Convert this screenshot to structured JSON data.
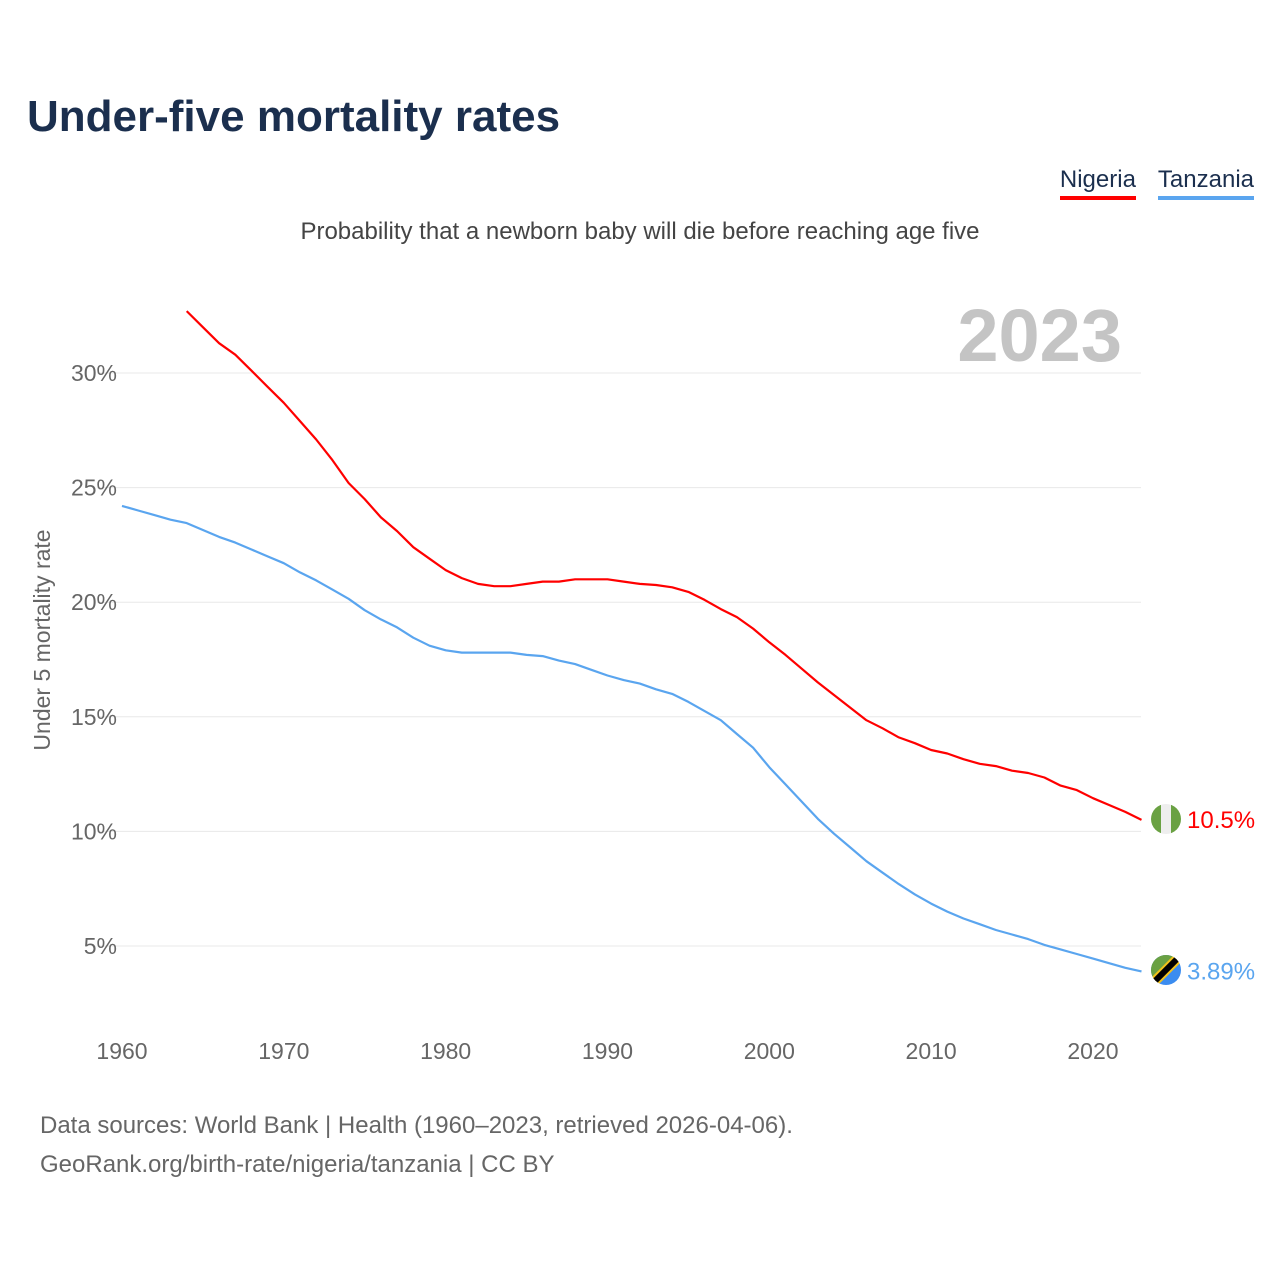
{
  "title": "Under-five mortality rates",
  "subtitle": "Probability that a newborn baby will die before reaching age five",
  "year_label": "2023",
  "source_line1": "Data sources: World Bank | Health (1960–2023, retrieved 2026-04-06).",
  "source_line2": "GeoRank.org/birth-rate/nigeria/tanzania | CC BY",
  "chart_data": {
    "type": "line",
    "title": "Under-five mortality rates",
    "subtitle": "Probability that a newborn baby will die before reaching age five",
    "xlabel": "",
    "ylabel": "Under 5 mortality rate",
    "xlim": [
      1960,
      2023
    ],
    "ylim": [
      0,
      33
    ],
    "grid": true,
    "legend": "top-right",
    "x_ticks": [
      1960,
      1970,
      1980,
      1990,
      2000,
      2010,
      2020
    ],
    "x_tick_labels": [
      "1960",
      "1970",
      "1980",
      "1990",
      "2000",
      "2010",
      "2020"
    ],
    "y_ticks": [
      5,
      10,
      15,
      20,
      25,
      30
    ],
    "y_tick_labels": [
      "5%",
      "10%",
      "15%",
      "20%",
      "25%",
      "30%"
    ],
    "series": [
      {
        "name": "Nigeria",
        "color": "#ff0000",
        "end_label": "10.5%",
        "flag": "nigeria-flag",
        "x": [
          1964,
          1965,
          1966,
          1967,
          1968,
          1969,
          1970,
          1971,
          1972,
          1973,
          1974,
          1975,
          1976,
          1977,
          1978,
          1979,
          1980,
          1981,
          1982,
          1983,
          1984,
          1985,
          1986,
          1987,
          1988,
          1989,
          1990,
          1991,
          1992,
          1993,
          1994,
          1995,
          1996,
          1997,
          1998,
          1999,
          2000,
          2001,
          2002,
          2003,
          2004,
          2005,
          2006,
          2007,
          2008,
          2009,
          2010,
          2011,
          2012,
          2013,
          2014,
          2015,
          2016,
          2017,
          2018,
          2019,
          2020,
          2021,
          2022,
          2023
        ],
        "values": [
          32.7,
          32.0,
          31.3,
          30.8,
          30.1,
          29.4,
          28.7,
          27.9,
          27.1,
          26.2,
          25.2,
          24.5,
          23.7,
          23.1,
          22.4,
          21.9,
          21.4,
          21.05,
          20.8,
          20.7,
          20.7,
          20.8,
          20.9,
          20.9,
          21.0,
          21.0,
          21.0,
          20.9,
          20.8,
          20.75,
          20.65,
          20.45,
          20.1,
          19.7,
          19.35,
          18.85,
          18.25,
          17.7,
          17.1,
          16.5,
          15.95,
          15.4,
          14.85,
          14.5,
          14.1,
          13.85,
          13.55,
          13.4,
          13.15,
          12.95,
          12.85,
          12.65,
          12.55,
          12.35,
          12.0,
          11.8,
          11.45,
          11.15,
          10.85,
          10.5
        ]
      },
      {
        "name": "Tanzania",
        "color": "#5aa5ef",
        "end_label": "3.89%",
        "flag": "tanzania-flag",
        "x": [
          1960,
          1961,
          1962,
          1963,
          1964,
          1965,
          1966,
          1967,
          1968,
          1969,
          1970,
          1971,
          1972,
          1973,
          1974,
          1975,
          1976,
          1977,
          1978,
          1979,
          1980,
          1981,
          1982,
          1983,
          1984,
          1985,
          1986,
          1987,
          1988,
          1989,
          1990,
          1991,
          1992,
          1993,
          1994,
          1995,
          1996,
          1997,
          1998,
          1999,
          2000,
          2001,
          2002,
          2003,
          2004,
          2005,
          2006,
          2007,
          2008,
          2009,
          2010,
          2011,
          2012,
          2013,
          2014,
          2015,
          2016,
          2017,
          2018,
          2019,
          2020,
          2021,
          2022,
          2023
        ],
        "values": [
          24.2,
          24.0,
          23.8,
          23.6,
          23.45,
          23.15,
          22.85,
          22.6,
          22.3,
          22.0,
          21.7,
          21.3,
          20.95,
          20.55,
          20.15,
          19.65,
          19.25,
          18.9,
          18.45,
          18.1,
          17.9,
          17.8,
          17.8,
          17.8,
          17.8,
          17.7,
          17.65,
          17.45,
          17.3,
          17.05,
          16.8,
          16.6,
          16.45,
          16.2,
          16.0,
          15.65,
          15.25,
          14.85,
          14.25,
          13.65,
          12.8,
          12.05,
          11.3,
          10.55,
          9.9,
          9.3,
          8.7,
          8.2,
          7.7,
          7.25,
          6.85,
          6.5,
          6.2,
          5.95,
          5.7,
          5.5,
          5.3,
          5.05,
          4.85,
          4.65,
          4.45,
          4.25,
          4.05,
          3.89
        ]
      }
    ]
  }
}
